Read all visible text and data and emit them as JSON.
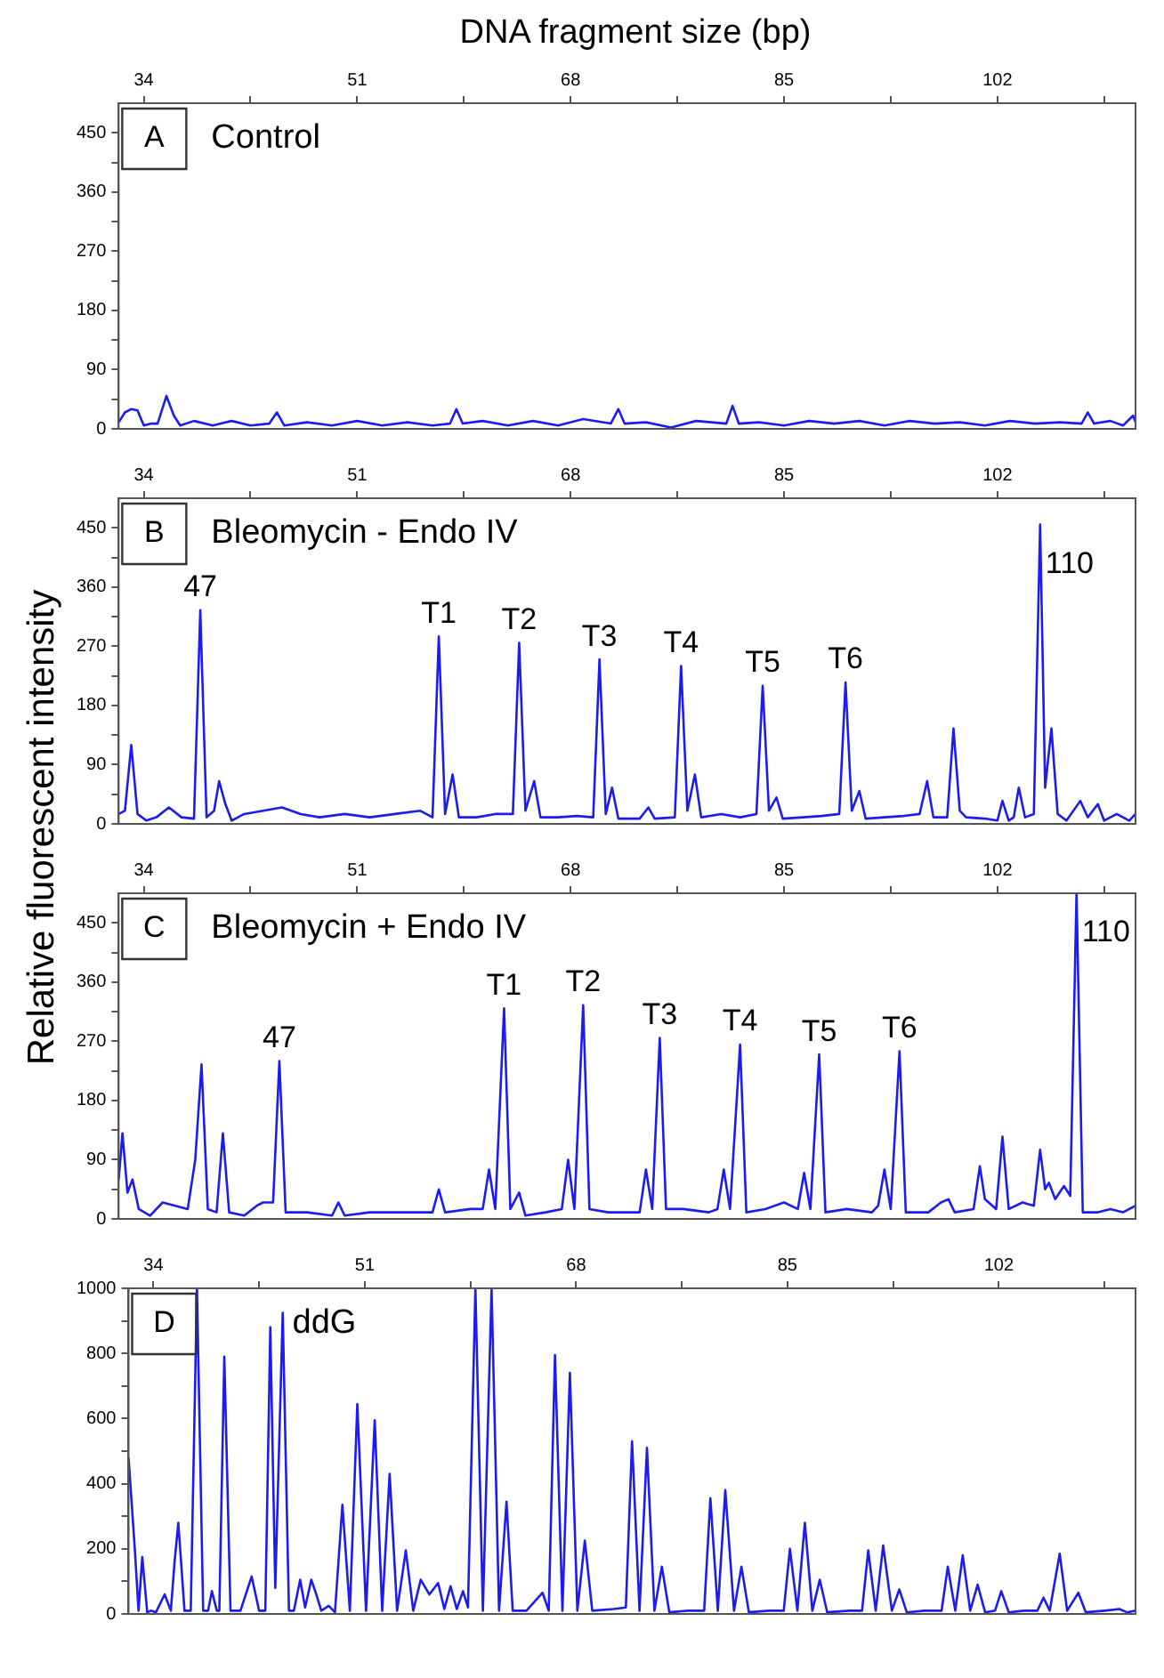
{
  "chart_data": [
    {
      "type": "line",
      "xlabel": "DNA fragment size (bp)",
      "ylabel": "Relative fluorescent intensity",
      "title": "Control",
      "annotations": [
        "A"
      ],
      "marker": "none",
      "line_style": "solid",
      "grid": false,
      "legend": false,
      "xlim": [
        32,
        113
      ],
      "xticks": [
        34,
        {
          "value": 42.5,
          "label": null
        },
        51,
        {
          "value": 59.5,
          "label": null
        },
        68,
        {
          "value": 76.5,
          "label": null
        },
        85,
        {
          "value": 93.5,
          "label": null
        },
        102,
        {
          "value": 110.5,
          "label": null
        }
      ],
      "ylim": [
        0,
        495
      ],
      "yticks": [
        0,
        {
          "value": 45,
          "label": null
        },
        90,
        {
          "value": 135,
          "label": null
        },
        180,
        {
          "value": 225,
          "label": null
        },
        270,
        {
          "value": 315,
          "label": null
        },
        360,
        {
          "value": 405,
          "label": null
        },
        450
      ],
      "series": [
        {
          "color": "#1c1cf0",
          "x": [
            32.0,
            32.5,
            33.0,
            33.5,
            34.0,
            34.6,
            35.1,
            35.8,
            36.4,
            36.9,
            38,
            39.5,
            41,
            42.5,
            44.0,
            44.6,
            45.2,
            47,
            49,
            51,
            53,
            55,
            57,
            58.4,
            58.9,
            59.4,
            61,
            63,
            65,
            67,
            69,
            71.2,
            71.8,
            72.3,
            74,
            76,
            78,
            80.4,
            80.9,
            81.4,
            83,
            85,
            87,
            89,
            91,
            93,
            95,
            97,
            99,
            101,
            103,
            105,
            107,
            108.7,
            109.2,
            109.7,
            111,
            112,
            112.8,
            113
          ],
          "values": [
            10,
            25,
            30,
            28,
            5,
            8,
            8,
            50,
            20,
            5,
            12,
            5,
            12,
            5,
            8,
            25,
            5,
            10,
            5,
            12,
            5,
            10,
            5,
            8,
            30,
            8,
            12,
            5,
            12,
            5,
            15,
            8,
            30,
            8,
            10,
            2,
            12,
            8,
            35,
            8,
            10,
            5,
            12,
            8,
            12,
            5,
            12,
            8,
            10,
            5,
            12,
            8,
            10,
            8,
            25,
            8,
            12,
            5,
            20,
            10
          ]
        }
      ]
    },
    {
      "type": "line",
      "title": "Bleomycin - Endo IV",
      "annotations": [
        "B",
        {
          "text": "47",
          "x": 38.5,
          "y": 325
        },
        {
          "text": "T1",
          "x": 57.5,
          "y": 285
        },
        {
          "text": "T2",
          "x": 63.9,
          "y": 275
        },
        {
          "text": "T3",
          "x": 70.3,
          "y": 250
        },
        {
          "text": "T4",
          "x": 76.8,
          "y": 240
        },
        {
          "text": "T5",
          "x": 83.3,
          "y": 210
        },
        {
          "text": "T6",
          "x": 89.9,
          "y": 215
        },
        {
          "text": "110",
          "x": 105.4,
          "y": 455
        }
      ],
      "marker": "none",
      "line_style": "solid",
      "grid": false,
      "legend": false,
      "xlim": [
        32,
        113
      ],
      "xticks": [
        34,
        {
          "value": 42.5,
          "label": null
        },
        51,
        {
          "value": 59.5,
          "label": null
        },
        68,
        {
          "value": 76.5,
          "label": null
        },
        85,
        {
          "value": 93.5,
          "label": null
        },
        102,
        {
          "value": 110.5,
          "label": null
        }
      ],
      "ylim": [
        0,
        495
      ],
      "yticks": [
        0,
        {
          "value": 45,
          "label": null
        },
        90,
        {
          "value": 135,
          "label": null
        },
        180,
        {
          "value": 225,
          "label": null
        },
        270,
        {
          "value": 315,
          "label": null
        },
        360,
        {
          "value": 405,
          "label": null
        },
        450
      ],
      "series": [
        {
          "color": "#1c1cf0",
          "x": [
            32.0,
            32.5,
            33.0,
            33.5,
            34.2,
            35,
            36,
            37,
            38.0,
            38.5,
            39.0,
            39.6,
            40.0,
            40.5,
            41.0,
            42,
            43.5,
            45,
            46.5,
            48,
            50,
            52,
            54,
            56,
            57.0,
            57.5,
            58.0,
            58.6,
            59.1,
            60.5,
            62,
            63.4,
            63.9,
            64.4,
            65.1,
            65.6,
            67,
            68.5,
            69.8,
            70.3,
            70.8,
            71.3,
            71.8,
            73.5,
            74.2,
            74.7,
            76.3,
            76.8,
            77.3,
            77.9,
            78.4,
            80,
            81.5,
            82.8,
            83.3,
            83.8,
            84.4,
            84.9,
            86.5,
            88,
            89.4,
            89.9,
            90.4,
            91.0,
            91.5,
            93,
            94.5,
            95.8,
            96.4,
            96.9,
            98.0,
            98.5,
            99.0,
            99.5,
            101,
            102.0,
            102.4,
            102.9,
            103.3,
            103.7,
            104.2,
            104.9,
            105.4,
            105.8,
            106.3,
            106.8,
            107.5,
            108.6,
            109.2,
            110.0,
            110.5,
            111.5,
            112.5,
            113
          ],
          "values": [
            15,
            20,
            120,
            15,
            5,
            10,
            25,
            10,
            8,
            325,
            10,
            20,
            65,
            30,
            5,
            15,
            20,
            25,
            15,
            10,
            15,
            10,
            15,
            20,
            10,
            285,
            15,
            75,
            10,
            10,
            15,
            15,
            275,
            20,
            65,
            10,
            10,
            12,
            10,
            250,
            15,
            55,
            8,
            8,
            25,
            8,
            10,
            240,
            20,
            75,
            10,
            15,
            10,
            15,
            210,
            20,
            40,
            8,
            10,
            12,
            15,
            215,
            20,
            50,
            8,
            10,
            12,
            15,
            65,
            10,
            10,
            145,
            20,
            10,
            8,
            5,
            35,
            5,
            10,
            55,
            10,
            15,
            455,
            55,
            145,
            15,
            5,
            35,
            10,
            30,
            5,
            15,
            5,
            15
          ]
        }
      ]
    },
    {
      "type": "line",
      "title": "Bleomycin + Endo IV",
      "annotations": [
        "C",
        {
          "text": "47",
          "x": 44.8,
          "y": 240
        },
        {
          "text": "T1",
          "x": 62.7,
          "y": 320
        },
        {
          "text": "T2",
          "x": 69.0,
          "y": 325
        },
        {
          "text": "T3",
          "x": 75.1,
          "y": 275
        },
        {
          "text": "T4",
          "x": 81.5,
          "y": 265
        },
        {
          "text": "T5",
          "x": 87.8,
          "y": 250
        },
        {
          "text": "T6",
          "x": 94.2,
          "y": 255
        },
        {
          "text": "110",
          "x": 108.3,
          "y": 495
        }
      ],
      "marker": "none",
      "line_style": "solid",
      "grid": false,
      "legend": false,
      "xlim": [
        32,
        113
      ],
      "xticks": [
        34,
        {
          "value": 42.5,
          "label": null
        },
        51,
        {
          "value": 59.5,
          "label": null
        },
        68,
        {
          "value": 76.5,
          "label": null
        },
        85,
        {
          "value": 93.5,
          "label": null
        },
        102,
        {
          "value": 110.5,
          "label": null
        }
      ],
      "ylim": [
        0,
        495
      ],
      "yticks": [
        0,
        {
          "value": 45,
          "label": null
        },
        90,
        {
          "value": 135,
          "label": null
        },
        180,
        {
          "value": 225,
          "label": null
        },
        270,
        {
          "value": 315,
          "label": null
        },
        360,
        {
          "value": 405,
          "label": null
        },
        450
      ],
      "series": [
        {
          "color": "#1c1cf0",
          "x": [
            32.0,
            32.3,
            32.7,
            33.1,
            33.6,
            34.5,
            35.5,
            36.5,
            37.5,
            38.1,
            38.6,
            39.1,
            39.8,
            40.3,
            40.8,
            42,
            43.0,
            43.5,
            44.3,
            44.8,
            45.3,
            47,
            49.0,
            49.5,
            50,
            52,
            54,
            56,
            57.0,
            57.5,
            58,
            60,
            61.0,
            61.5,
            62.0,
            62.7,
            63.2,
            63.9,
            64.4,
            66,
            67.3,
            67.8,
            68.3,
            69.0,
            69.5,
            71,
            73.5,
            74.0,
            74.5,
            75.1,
            75.6,
            77,
            79,
            79.7,
            80.2,
            80.7,
            81.5,
            82,
            83.5,
            85,
            86.1,
            86.6,
            87.1,
            87.8,
            88.3,
            90,
            92,
            92.5,
            93.0,
            93.5,
            94.2,
            94.7,
            96.5,
            97.5,
            98.1,
            98.6,
            100.1,
            100.6,
            101.0,
            101.9,
            102.4,
            102.9,
            104,
            104.9,
            105.4,
            105.8,
            106.1,
            106.6,
            107.3,
            107.8,
            108.3,
            108.8,
            110,
            111,
            112,
            113
          ],
          "values": [
            60,
            130,
            40,
            60,
            15,
            5,
            25,
            20,
            15,
            90,
            235,
            15,
            10,
            130,
            10,
            5,
            20,
            25,
            25,
            240,
            10,
            10,
            5,
            25,
            5,
            10,
            10,
            10,
            10,
            45,
            10,
            15,
            15,
            75,
            15,
            320,
            15,
            40,
            5,
            10,
            15,
            90,
            15,
            325,
            15,
            10,
            10,
            75,
            15,
            275,
            15,
            15,
            10,
            15,
            75,
            15,
            265,
            10,
            15,
            25,
            15,
            70,
            15,
            250,
            10,
            15,
            10,
            20,
            75,
            15,
            255,
            10,
            10,
            25,
            30,
            10,
            15,
            80,
            30,
            15,
            125,
            15,
            25,
            20,
            105,
            45,
            55,
            30,
            50,
            35,
            495,
            10,
            10,
            15,
            10,
            20
          ]
        }
      ]
    },
    {
      "type": "line",
      "title": "ddG",
      "annotations": [
        "D"
      ],
      "marker": "none",
      "line_style": "solid",
      "grid": false,
      "legend": false,
      "xlim": [
        32,
        113
      ],
      "xticks": [
        34,
        {
          "value": 42.5,
          "label": null
        },
        51,
        {
          "value": 59.5,
          "label": null
        },
        68,
        {
          "value": 76.5,
          "label": null
        },
        85,
        {
          "value": 93.5,
          "label": null
        },
        102,
        {
          "value": 110.5,
          "label": null
        }
      ],
      "ylim": [
        0,
        1000
      ],
      "yticks": [
        0,
        {
          "value": 100,
          "label": null
        },
        200,
        {
          "value": 300,
          "label": null
        },
        400,
        {
          "value": 500,
          "label": null
        },
        600,
        {
          "value": 700,
          "label": null
        },
        800,
        {
          "value": 900,
          "label": null
        },
        1000
      ],
      "series": [
        {
          "color": "#1c1cf0",
          "x": [
            32.0,
            32.5,
            32.8,
            33.1,
            33.5,
            33.8,
            34.2,
            34.9,
            35.4,
            35.7,
            36.0,
            36.5,
            37.0,
            37.5,
            38.0,
            38.4,
            38.7,
            39.1,
            39.3,
            39.7,
            40.2,
            41.0,
            41.9,
            42.5,
            43.0,
            43.4,
            43.8,
            44.4,
            44.9,
            45.3,
            45.8,
            46.2,
            46.7,
            47.1,
            47.5,
            48.1,
            48.6,
            49.2,
            49.8,
            50.4,
            51.1,
            51.8,
            52.4,
            53.0,
            53.6,
            54.3,
            54.9,
            55.5,
            56.2,
            56.9,
            57.4,
            57.9,
            58.4,
            58.9,
            59.3,
            59.9,
            60.5,
            61.2,
            61.8,
            62.4,
            62.9,
            64,
            65.3,
            65.8,
            66.3,
            66.9,
            67.5,
            68.1,
            68.7,
            69.3,
            71,
            72.0,
            72.5,
            73.1,
            73.7,
            74.3,
            74.9,
            75.5,
            77,
            78.3,
            78.8,
            79.4,
            80.0,
            80.7,
            81.3,
            81.9,
            83.5,
            84.7,
            85.2,
            85.8,
            86.4,
            87.0,
            87.6,
            88.2,
            90,
            91.0,
            91.5,
            92.1,
            92.7,
            93.4,
            94.0,
            94.6,
            96,
            97.4,
            97.9,
            98.5,
            99.1,
            99.7,
            100.3,
            100.9,
            101.7,
            102.2,
            102.8,
            104,
            105.1,
            105.6,
            106.1,
            106.9,
            107.5,
            108.4,
            109,
            110.5,
            111.7,
            112.3,
            113
          ],
          "values": [
            480,
            200,
            10,
            175,
            5,
            10,
            5,
            60,
            10,
            160,
            280,
            10,
            10,
            1000,
            10,
            10,
            70,
            10,
            10,
            790,
            10,
            10,
            115,
            10,
            10,
            880,
            80,
            925,
            10,
            10,
            105,
            20,
            105,
            60,
            10,
            25,
            5,
            335,
            10,
            645,
            10,
            595,
            10,
            430,
            10,
            195,
            10,
            105,
            60,
            95,
            15,
            85,
            15,
            70,
            20,
            1000,
            10,
            1000,
            10,
            345,
            10,
            10,
            65,
            10,
            795,
            10,
            740,
            10,
            225,
            10,
            15,
            20,
            530,
            10,
            510,
            10,
            145,
            5,
            10,
            10,
            355,
            10,
            380,
            10,
            145,
            5,
            10,
            10,
            200,
            10,
            280,
            10,
            105,
            5,
            10,
            10,
            195,
            10,
            210,
            10,
            75,
            5,
            10,
            10,
            145,
            10,
            180,
            10,
            90,
            5,
            10,
            70,
            5,
            10,
            10,
            50,
            10,
            185,
            10,
            65,
            5,
            10,
            15,
            5,
            10
          ]
        }
      ]
    }
  ]
}
